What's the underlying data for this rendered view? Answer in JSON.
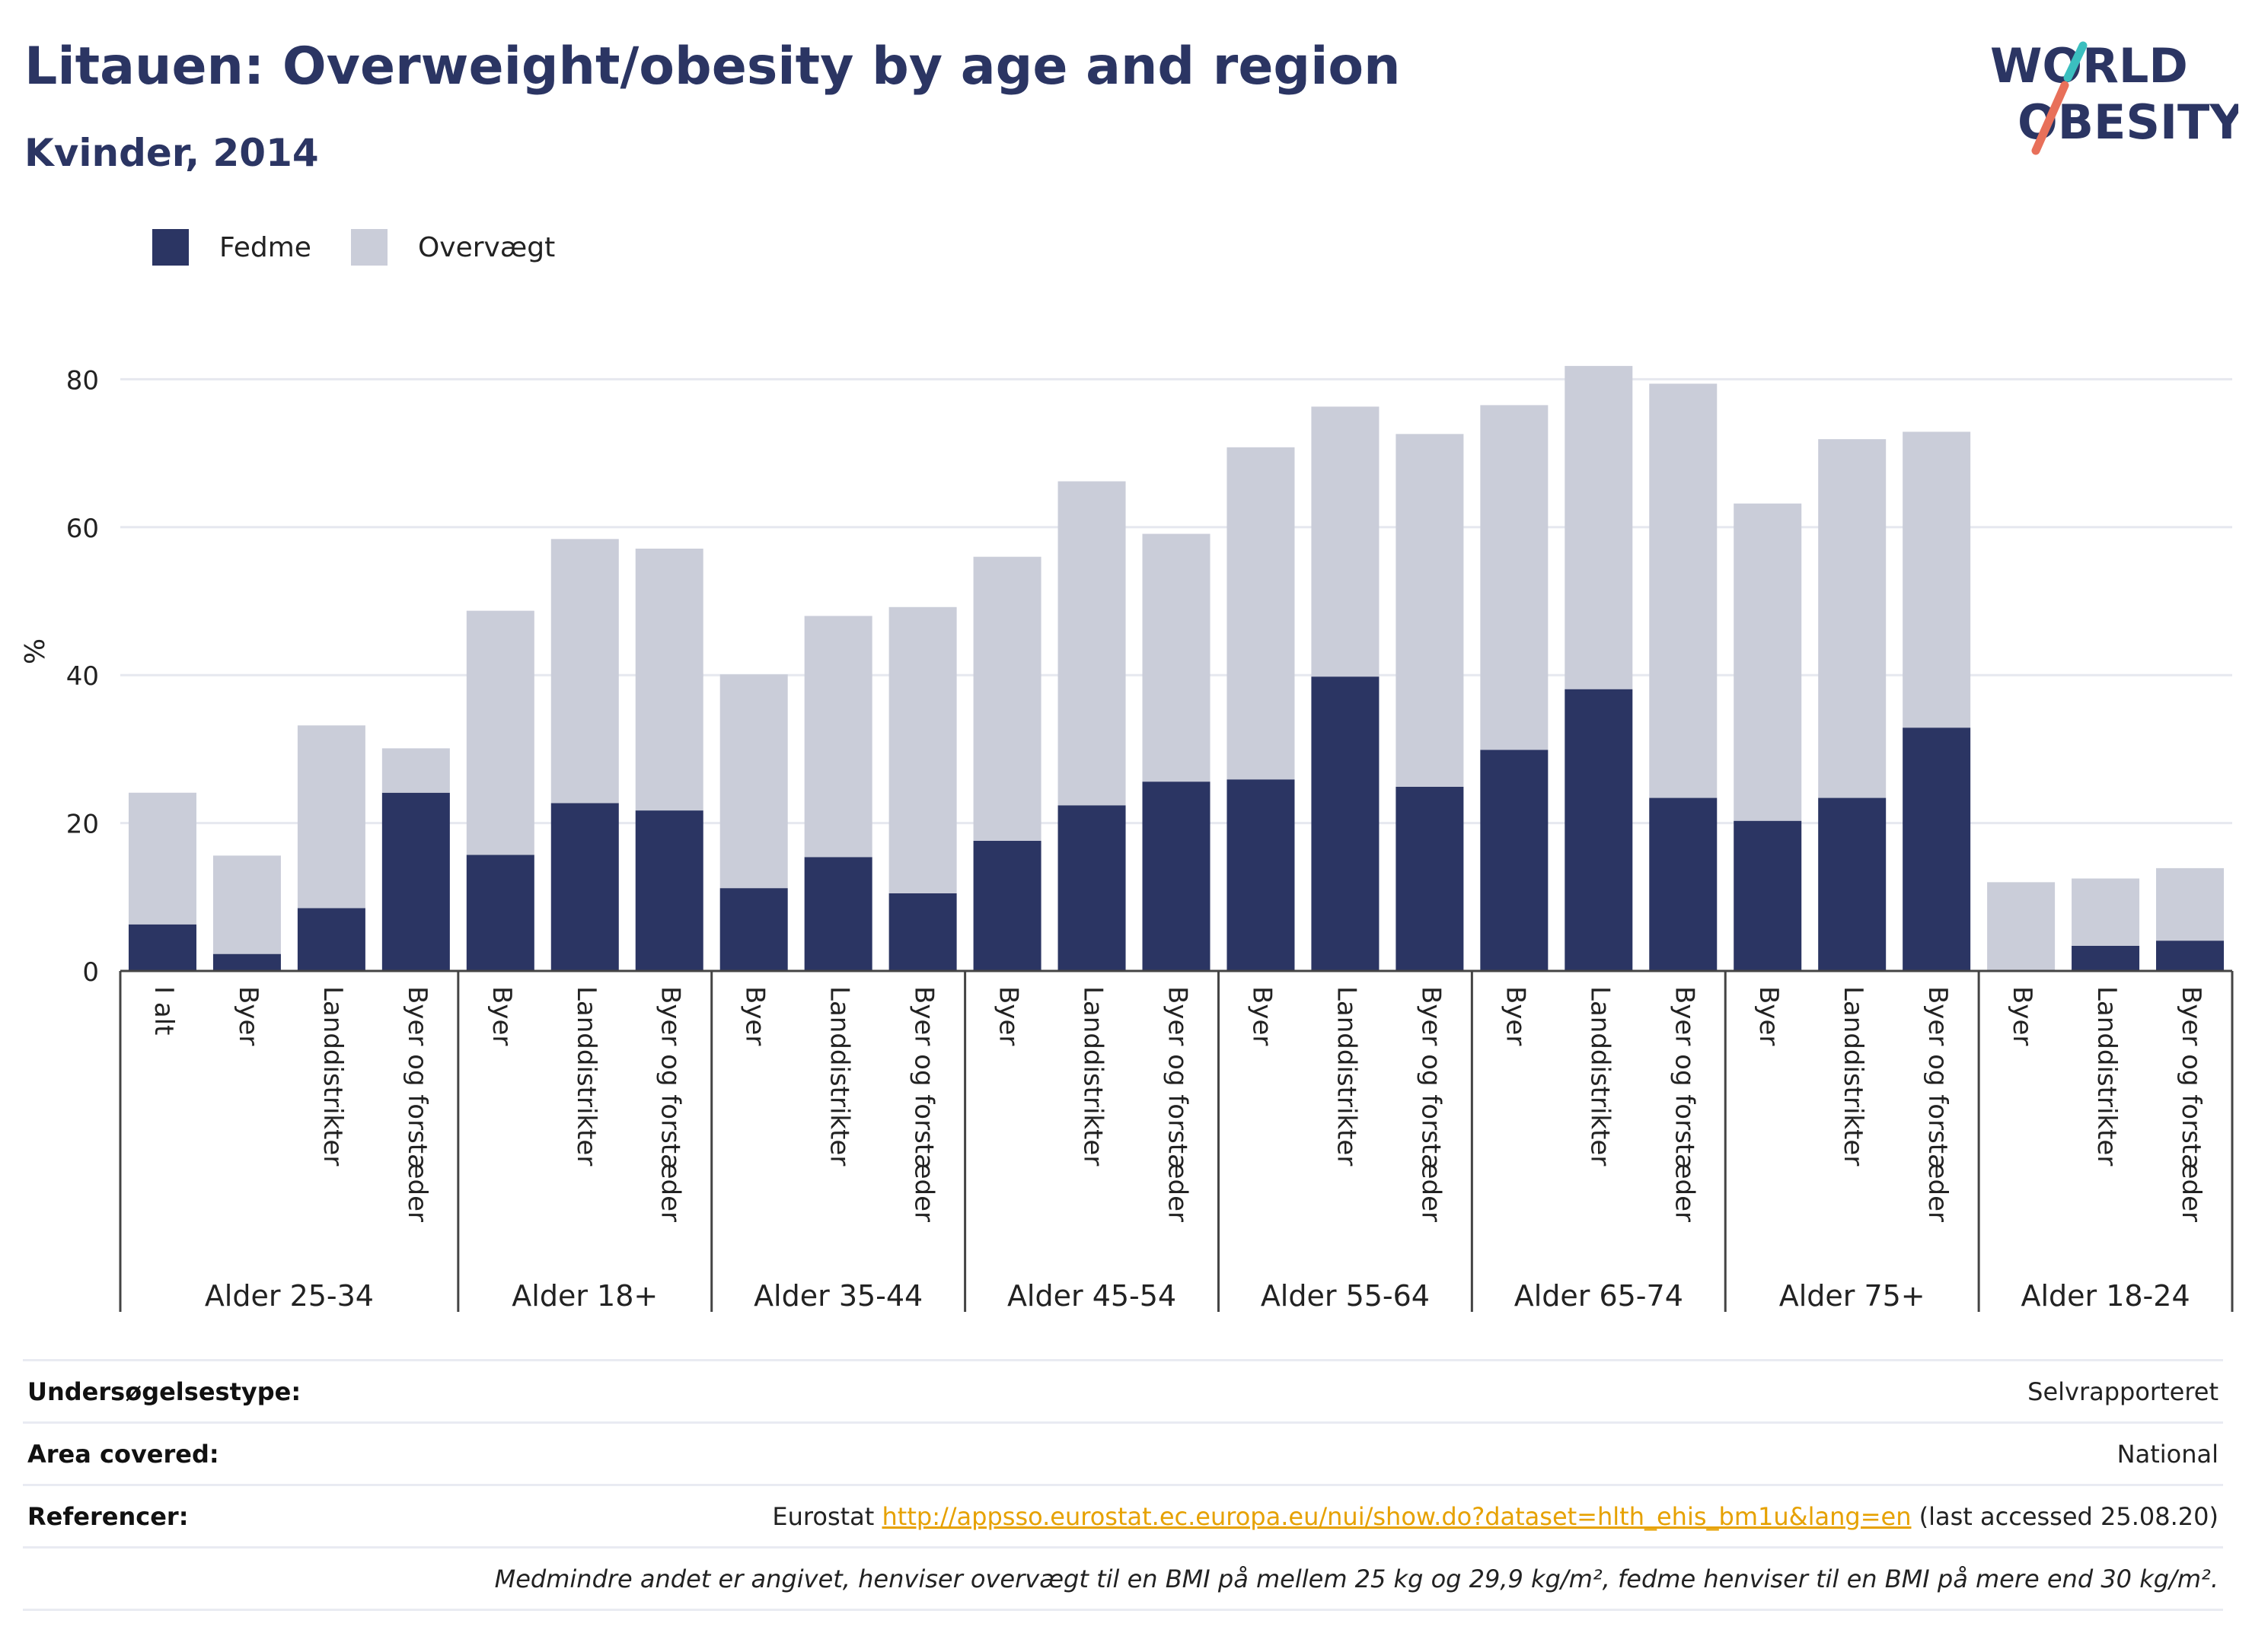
{
  "header": {
    "title": "Litauen: Overweight/obesity by age and region",
    "subtitle": "Kvinder, 2014"
  },
  "logo": {
    "line1": "WORLD",
    "line2": "OBESITY"
  },
  "legend": [
    {
      "label": "Fedme",
      "color": "#2b3563"
    },
    {
      "label": "Overvægt",
      "color": "#cacdd9"
    }
  ],
  "chart_data": {
    "type": "bar",
    "stacked": true,
    "ylabel": "%",
    "ylim": [
      0,
      85
    ],
    "yticks": [
      0,
      20,
      40,
      60,
      80
    ],
    "grid": true,
    "legend_position": "top-left",
    "groups": [
      {
        "label": "Alder 25-34",
        "categories": [
          "I alt",
          "Byer",
          "Landdistrikter",
          "Byer og forstæder"
        ]
      },
      {
        "label": "Alder 18+",
        "categories": [
          "Byer",
          "Landdistrikter",
          "Byer og forstæder"
        ]
      },
      {
        "label": "Alder 35-44",
        "categories": [
          "Byer",
          "Landdistrikter",
          "Byer og forstæder"
        ]
      },
      {
        "label": "Alder 45-54",
        "categories": [
          "Byer",
          "Landdistrikter",
          "Byer og forstæder"
        ]
      },
      {
        "label": "Alder 55-64",
        "categories": [
          "Byer",
          "Landdistrikter",
          "Byer og forstæder"
        ]
      },
      {
        "label": "Alder 65-74",
        "categories": [
          "Byer",
          "Landdistrikter",
          "Byer og forstæder"
        ]
      },
      {
        "label": "Alder 75+",
        "categories": [
          "Byer",
          "Landdistrikter",
          "Byer og forstæder"
        ]
      },
      {
        "label": "Alder 18-24",
        "categories": [
          "Byer",
          "Landdistrikter",
          "Byer og forstæder"
        ]
      }
    ],
    "series": [
      {
        "name": "Fedme",
        "color": "#2b3563",
        "values": [
          6.3,
          2.3,
          8.5,
          24.1,
          15.7,
          22.7,
          21.7,
          11.2,
          15.4,
          10.5,
          17.6,
          22.4,
          25.6,
          25.9,
          39.8,
          24.9,
          29.9,
          38.1,
          23.4,
          20.3,
          23.4,
          32.9,
          0,
          3.4,
          4.1
        ]
      },
      {
        "name": "Overvægt",
        "color": "#cacdd9",
        "values": [
          17.8,
          13.3,
          24.7,
          6.0,
          33.0,
          35.7,
          35.4,
          28.9,
          32.6,
          38.7,
          38.4,
          43.8,
          33.5,
          44.9,
          36.5,
          47.7,
          46.6,
          43.7,
          56.0,
          42.9,
          48.5,
          40.0,
          12.0,
          9.1,
          9.8
        ]
      }
    ]
  },
  "info": {
    "survey_label": "Undersøgelsestype:",
    "survey_value": "Selvrapporteret",
    "area_label": "Area covered:",
    "area_value": "National",
    "ref_label": "Referencer:",
    "ref_prefix": "Eurostat",
    "ref_link": "http://appsso.eurostat.ec.europa.eu/nui/show.do?dataset=hlth_ehis_bm1u&lang=en",
    "ref_suffix": "(last accessed 25.08.20)",
    "note": "Medmindre andet er angivet, henviser overvægt til en BMI på mellem 25 kg og 29,9 kg/m², fedme henviser til en BMI på mere end 30 kg/m²."
  }
}
